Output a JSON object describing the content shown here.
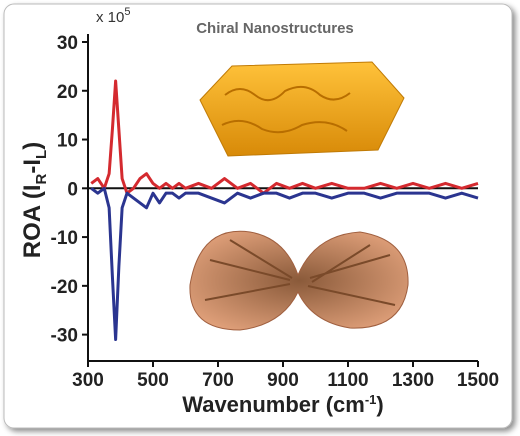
{
  "chart_data": {
    "type": "line",
    "title": "Chiral Nanostructures",
    "scale_label": [
      "x 10",
      "5"
    ],
    "ylabel_parts": [
      "ROA (I",
      "R",
      "-I",
      "L",
      ")"
    ],
    "xlabel_parts": [
      "Wavenumber (cm",
      "-1",
      ")"
    ],
    "x": [
      310,
      330,
      350,
      365,
      375,
      385,
      395,
      405,
      420,
      440,
      460,
      480,
      500,
      520,
      540,
      560,
      580,
      600,
      640,
      680,
      720,
      760,
      800,
      840,
      880,
      920,
      960,
      1000,
      1050,
      1100,
      1150,
      1200,
      1250,
      1300,
      1350,
      1400,
      1450,
      1500
    ],
    "series": [
      {
        "color": "#d42a2f",
        "values": [
          1,
          2,
          0,
          3,
          12,
          22,
          12,
          2,
          -1,
          0,
          2,
          3,
          1,
          0,
          1,
          0,
          1,
          0,
          1,
          0,
          2,
          0,
          1,
          -1,
          1,
          0,
          1,
          0,
          1,
          0,
          0,
          1,
          0,
          1,
          0,
          1,
          0,
          1
        ]
      },
      {
        "color": "#2b3590",
        "values": [
          0,
          -1,
          0,
          -4,
          -18,
          -31,
          -16,
          -4,
          -1,
          -2,
          -3,
          -4,
          -1,
          -3,
          -1,
          -1,
          -2,
          -1,
          -1,
          -2,
          -3,
          -1,
          -2,
          -1,
          -1,
          -2,
          -1,
          -1,
          -2,
          -1,
          -1,
          -2,
          -1,
          -1,
          -1,
          -2,
          -1,
          -2
        ]
      }
    ],
    "xlim": [
      300,
      1500
    ],
    "xticks": [
      300,
      500,
      700,
      900,
      1100,
      1300,
      1500
    ],
    "ylim": [
      -35,
      30
    ],
    "yticks": [
      -30,
      -20,
      -10,
      0,
      10,
      20,
      30
    ]
  }
}
